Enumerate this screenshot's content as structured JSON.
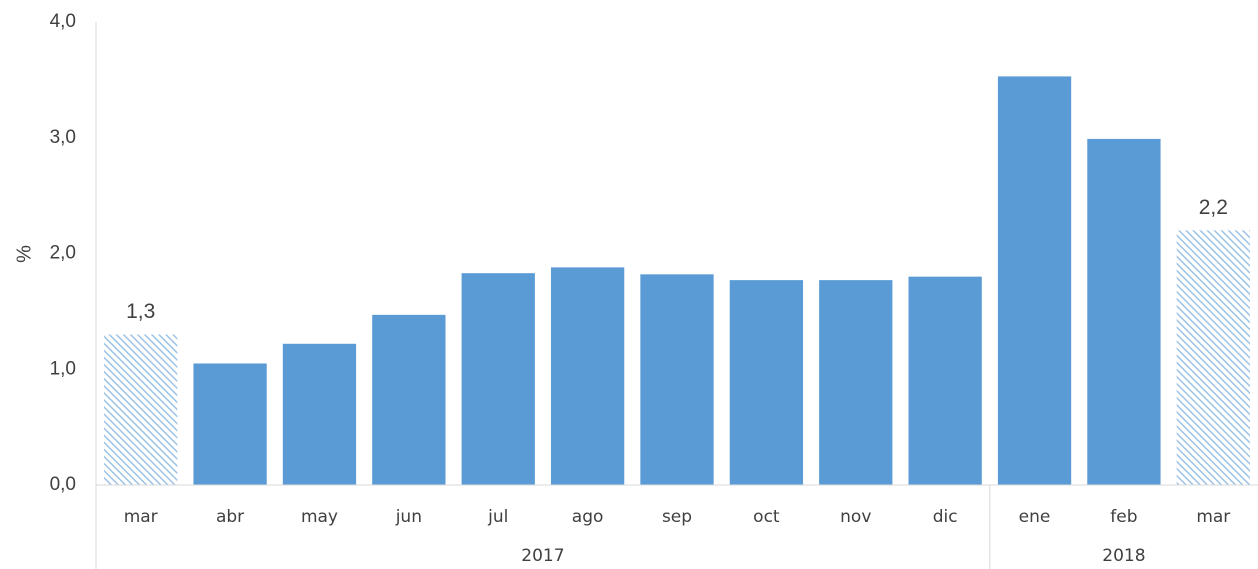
{
  "chart_data": {
    "type": "bar",
    "ylabel": "%",
    "ylim": [
      0,
      4
    ],
    "yticks": [
      "0,0",
      "1,0",
      "2,0",
      "3,0",
      "4,0"
    ],
    "categories": [
      "mar",
      "abr",
      "may",
      "jun",
      "jul",
      "ago",
      "sep",
      "oct",
      "nov",
      "dic",
      "ene",
      "feb",
      "mar"
    ],
    "values": [
      1.3,
      1.05,
      1.22,
      1.47,
      1.83,
      1.88,
      1.82,
      1.77,
      1.77,
      1.8,
      3.53,
      2.99,
      2.2
    ],
    "highlighted": [
      true,
      false,
      false,
      false,
      false,
      false,
      false,
      false,
      false,
      false,
      false,
      false,
      true
    ],
    "data_labels": [
      "1,3",
      "",
      "",
      "",
      "",
      "",
      "",
      "",
      "",
      "",
      "",
      "",
      "2,2"
    ],
    "groups": [
      {
        "label": "2017",
        "start": 0,
        "end": 9
      },
      {
        "label": "2018",
        "start": 10,
        "end": 12
      }
    ],
    "grid": false,
    "colors": {
      "bar": "#5b9bd5",
      "hatch": "#9dc3e6",
      "axis": "#d9d9d9",
      "text": "#404040"
    }
  }
}
